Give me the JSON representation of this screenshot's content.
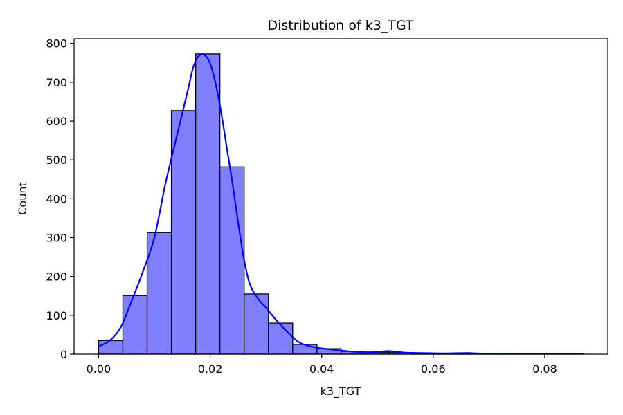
{
  "chart_data": {
    "type": "bar",
    "title": "Distribution of k3_TGT",
    "xlabel": "k3_TGT",
    "ylabel": "Count",
    "xlim": [
      -0.0044,
      0.0913
    ],
    "ylim": [
      0,
      812
    ],
    "xticks": [
      0.0,
      0.02,
      0.04,
      0.06,
      0.08
    ],
    "xtick_labels": [
      "0.00",
      "0.02",
      "0.04",
      "0.06",
      "0.08"
    ],
    "yticks": [
      0,
      100,
      200,
      300,
      400,
      500,
      600,
      700,
      800
    ],
    "ytick_labels": [
      "0",
      "100",
      "200",
      "300",
      "400",
      "500",
      "600",
      "700",
      "800"
    ],
    "grid": false,
    "bin_edges": [
      0.0,
      0.00435,
      0.0087,
      0.01305,
      0.0174,
      0.02175,
      0.0261,
      0.03045,
      0.0348,
      0.03915,
      0.0435,
      0.04785,
      0.0522,
      0.05655,
      0.0609,
      0.06525,
      0.0696,
      0.07395,
      0.0783,
      0.08265,
      0.087
    ],
    "counts": [
      35,
      151,
      313,
      627,
      773,
      482,
      155,
      80,
      25,
      14,
      7,
      5,
      4,
      2,
      2,
      1,
      1,
      1,
      1,
      1
    ],
    "bar_color": "#8080ff",
    "bar_edge_color": "#000000",
    "kde": {
      "color": "#0000ff",
      "x": [
        0.0,
        0.002,
        0.004,
        0.006,
        0.008,
        0.01,
        0.012,
        0.014,
        0.016,
        0.017,
        0.018,
        0.019,
        0.02,
        0.021,
        0.022,
        0.023,
        0.024,
        0.025,
        0.026,
        0.027,
        0.028,
        0.029,
        0.03,
        0.032,
        0.034,
        0.036,
        0.038,
        0.04,
        0.043,
        0.046,
        0.049,
        0.052,
        0.055,
        0.058,
        0.062,
        0.066,
        0.07,
        0.075,
        0.08,
        0.087
      ],
      "y": [
        20,
        35,
        70,
        140,
        215,
        300,
        440,
        560,
        680,
        740,
        768,
        770,
        748,
        695,
        620,
        530,
        440,
        340,
        250,
        185,
        155,
        135,
        120,
        85,
        55,
        30,
        20,
        15,
        10,
        6,
        5,
        8,
        4,
        3,
        2,
        3,
        1,
        1,
        1,
        1
      ]
    }
  }
}
